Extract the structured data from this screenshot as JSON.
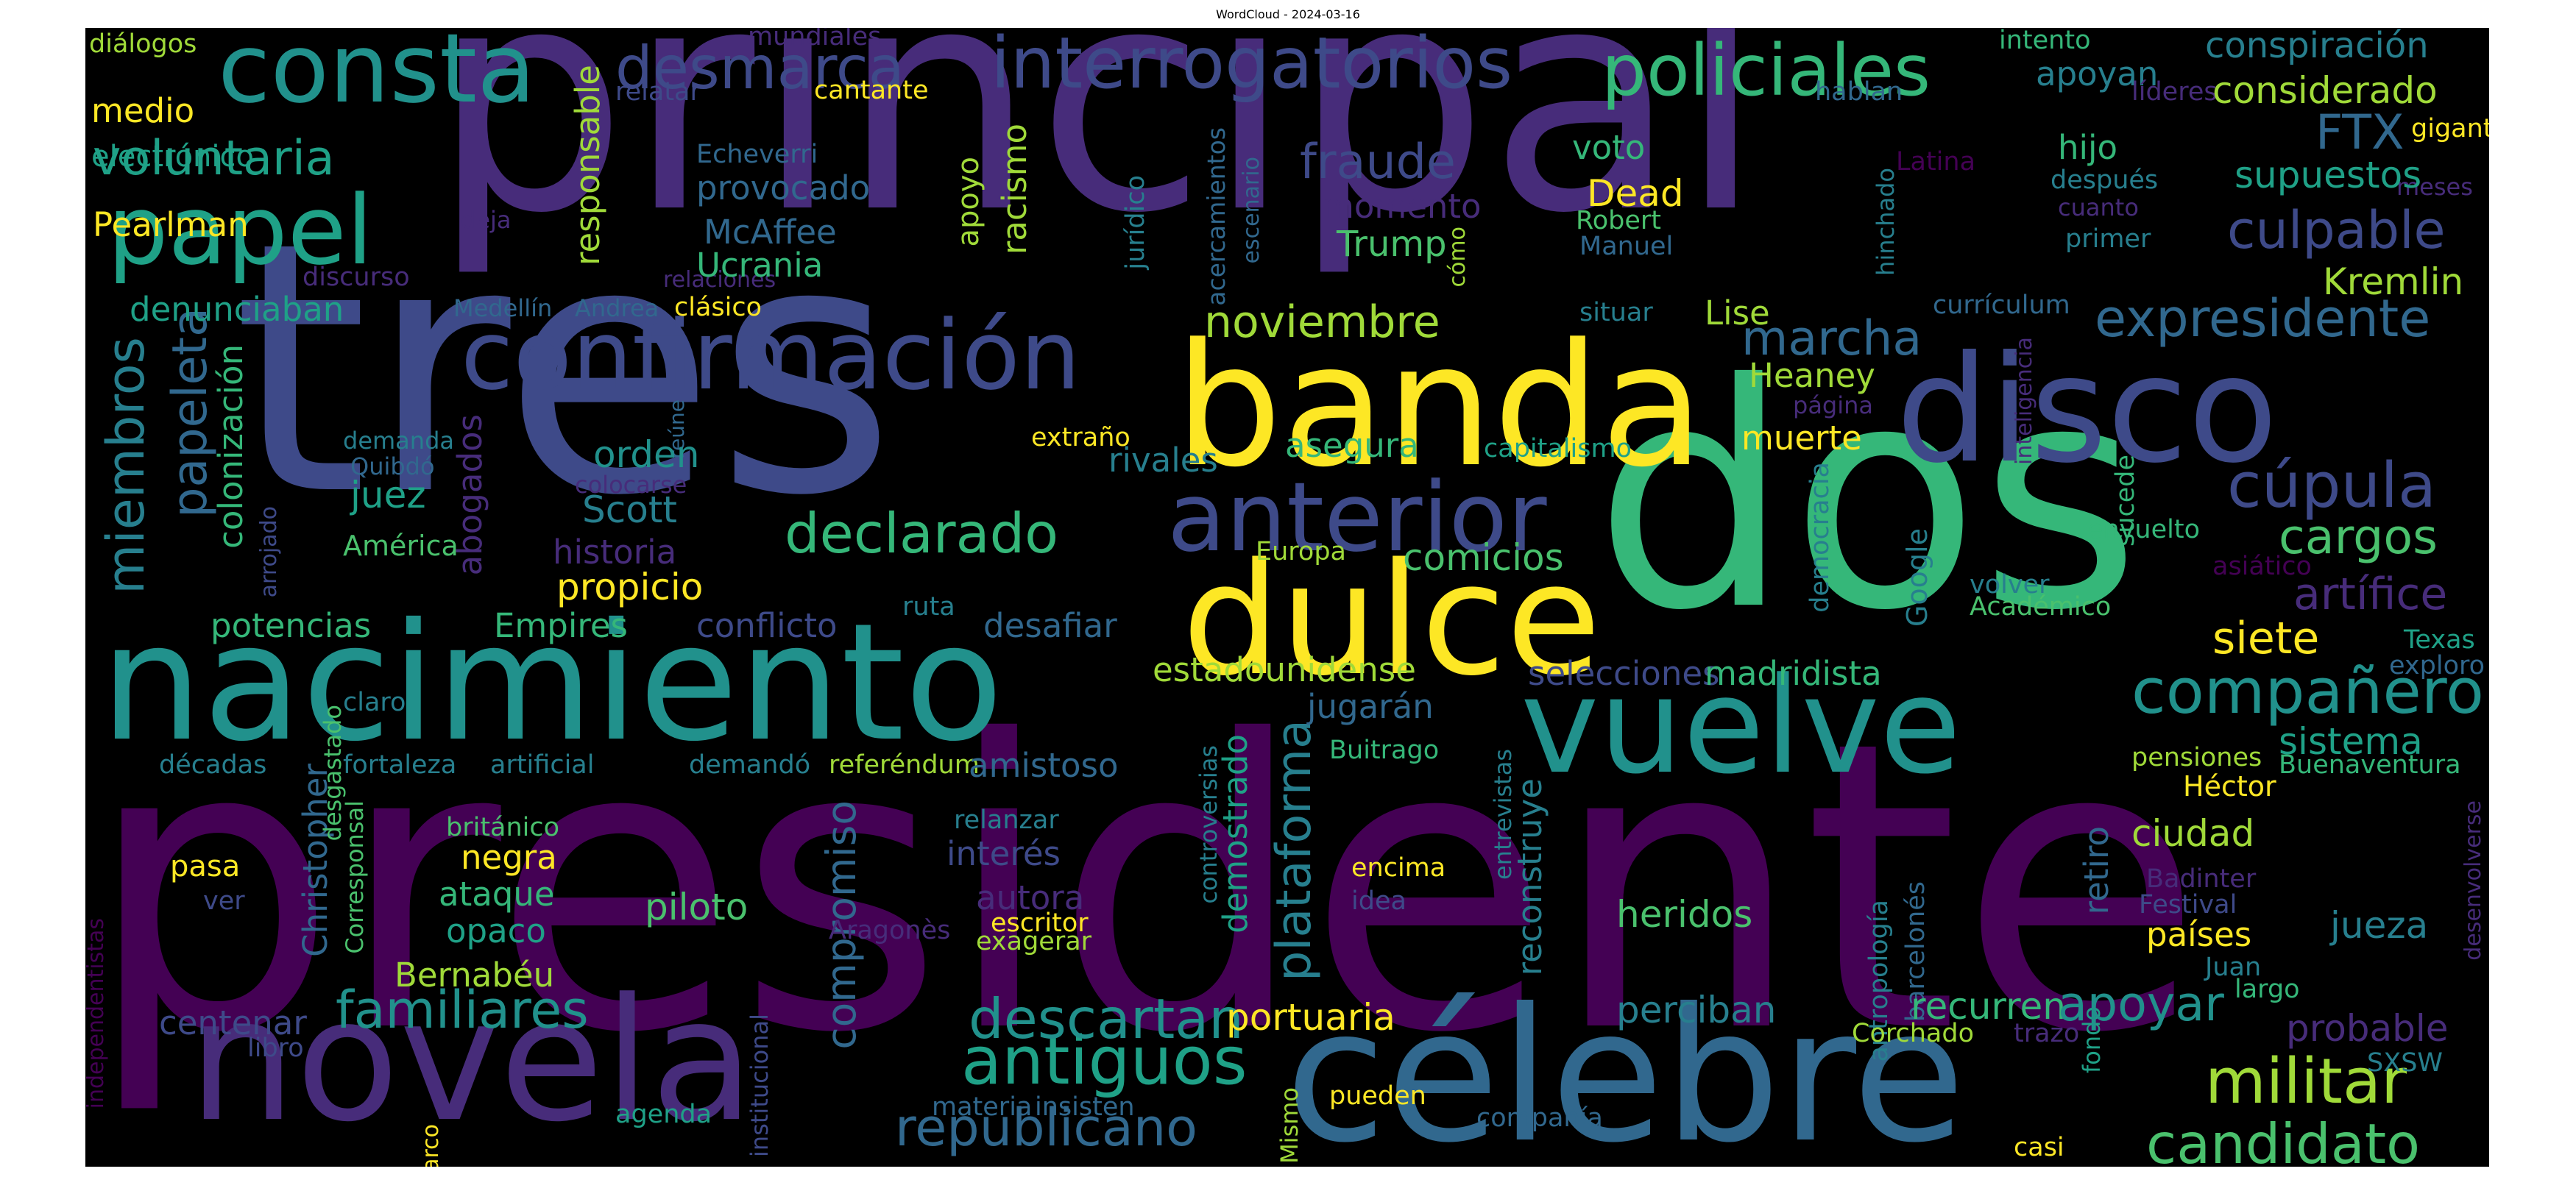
{
  "title": "WordCloud - 2024-03-16",
  "colors": {
    "background": "#000000",
    "yellow": "#fde725",
    "lightgreen": "#a0da39",
    "green": "#4ac16d",
    "seagreen": "#35b779",
    "teal": "#1fa187",
    "tealblue": "#21918c",
    "blue": "#277f8e",
    "steel": "#31688e",
    "indigo": "#3e4a89",
    "violet": "#472c7a",
    "purple": "#440154"
  },
  "words": [
    {
      "id": "presidente",
      "text": "presidente",
      "c": "#440154"
    },
    {
      "id": "principal",
      "text": "principal",
      "c": "#472c7a"
    },
    {
      "id": "tres",
      "text": "tres",
      "c": "#3e4a89"
    },
    {
      "id": "dos",
      "text": "dos",
      "c": "#35b779"
    },
    {
      "id": "banda",
      "text": "banda",
      "c": "#fde725"
    },
    {
      "id": "dulce",
      "text": "dulce",
      "c": "#fde725"
    },
    {
      "id": "nacimiento",
      "text": "nacimiento",
      "c": "#21918c"
    },
    {
      "id": "novela",
      "text": "novela",
      "c": "#472c7a"
    },
    {
      "id": "celebre",
      "text": "célebre",
      "c": "#31688e"
    },
    {
      "id": "vuelve",
      "text": "vuelve",
      "c": "#21918c"
    },
    {
      "id": "disco",
      "text": "disco",
      "c": "#3e4a89"
    },
    {
      "id": "confirmacion",
      "text": "confirmación",
      "c": "#3e4a89"
    },
    {
      "id": "anterior",
      "text": "anterior",
      "c": "#3e4a89"
    },
    {
      "id": "consta",
      "text": "consta",
      "c": "#21918c"
    },
    {
      "id": "papel",
      "text": "papel",
      "c": "#1fa187"
    },
    {
      "id": "interrogatorios",
      "text": "interrogatorios",
      "c": "#3e4a89"
    },
    {
      "id": "policiales",
      "text": "policiales",
      "c": "#35b779"
    },
    {
      "id": "desmarca",
      "text": "desmarca",
      "c": "#3e4a89"
    },
    {
      "id": "militar",
      "text": "militar",
      "c": "#a0da39"
    },
    {
      "id": "candidato",
      "text": "candidato",
      "c": "#4ac16d"
    },
    {
      "id": "antiguos",
      "text": "antiguos",
      "c": "#1fa187"
    },
    {
      "id": "republicano",
      "text": "republicano",
      "c": "#31688e"
    },
    {
      "id": "descartan",
      "text": "descartan",
      "c": "#21918c"
    },
    {
      "id": "companero",
      "text": "compañero",
      "c": "#21918c"
    },
    {
      "id": "cupula",
      "text": "cúpula",
      "c": "#3e4a89"
    },
    {
      "id": "expresidente",
      "text": "expresidente",
      "c": "#31688e"
    },
    {
      "id": "culpable",
      "text": "culpable",
      "c": "#3e4a89"
    },
    {
      "id": "voluntaria",
      "text": "voluntaria",
      "c": "#1fa187"
    },
    {
      "id": "declarado",
      "text": "declarado",
      "c": "#35b779"
    },
    {
      "id": "familiares",
      "text": "familiares",
      "c": "#21918c"
    },
    {
      "id": "noviembre",
      "text": "noviembre",
      "c": "#a0da39"
    },
    {
      "id": "fraude",
      "text": "fraude",
      "c": "#3e4a89"
    },
    {
      "id": "marcha",
      "text": "marcha",
      "c": "#31688e"
    },
    {
      "id": "cargos",
      "text": "cargos",
      "c": "#4ac16d"
    },
    {
      "id": "siete",
      "text": "siete",
      "c": "#fde725"
    },
    {
      "id": "artifice",
      "text": "artífice",
      "c": "#472c7a"
    },
    {
      "id": "miembros",
      "text": "miembros",
      "c": "#277f8e",
      "v": true
    },
    {
      "id": "papeleta",
      "text": "papeleta",
      "c": "#31688e",
      "v": true
    },
    {
      "id": "plataforma",
      "text": "plataforma",
      "c": "#277f8e",
      "v": true
    },
    {
      "id": "demostrado",
      "text": "demostrado",
      "c": "#1fa187",
      "v": true
    },
    {
      "id": "compromiso",
      "text": "compromiso",
      "c": "#31688e",
      "v": true
    },
    {
      "id": "reconstruye",
      "text": "reconstruye",
      "c": "#277f8e",
      "v": true
    },
    {
      "id": "colonizacion",
      "text": "colonización",
      "c": "#35b779",
      "v": true
    },
    {
      "id": "abogados",
      "text": "abogados",
      "c": "#472c7a",
      "v": true
    },
    {
      "id": "christopher",
      "text": "Christopher",
      "c": "#31688e",
      "v": true
    },
    {
      "id": "responsable",
      "text": "responsable",
      "c": "#a0da39",
      "v": true
    },
    {
      "id": "racismo",
      "text": "racismo",
      "c": "#a0da39",
      "v": true
    },
    {
      "id": "apoyo",
      "text": "apoyo",
      "c": "#a0da39",
      "v": true
    },
    {
      "id": "juridico",
      "text": "jurídico",
      "c": "#277f8e",
      "v": true
    },
    {
      "id": "acercamientos",
      "text": "acercamientos",
      "c": "#31688e",
      "v": true
    },
    {
      "id": "escenario",
      "text": "escenario",
      "c": "#31688e",
      "v": true
    },
    {
      "id": "hinchado",
      "text": "hinchado",
      "c": "#277f8e",
      "v": true
    },
    {
      "id": "como",
      "text": "cómo",
      "c": "#a0da39",
      "v": true
    },
    {
      "id": "reune",
      "text": "reúne",
      "c": "#31688e",
      "v": true
    },
    {
      "id": "arrojado",
      "text": "arrojado",
      "c": "#3e4a89",
      "v": true
    },
    {
      "id": "desgastado",
      "text": "desgastado",
      "c": "#4ac16d",
      "v": true
    },
    {
      "id": "corresponsal",
      "text": "Corresponsal",
      "c": "#4ac16d",
      "v": true
    },
    {
      "id": "independentistas",
      "text": "independentistas",
      "c": "#440154",
      "v": true
    },
    {
      "id": "marco",
      "text": "marco",
      "c": "#fde725",
      "v": true
    },
    {
      "id": "institucional",
      "text": "institucional",
      "c": "#3e4a89",
      "v": true
    },
    {
      "id": "controversias",
      "text": "controversias",
      "c": "#277f8e",
      "v": true
    },
    {
      "id": "mismo",
      "text": "Mismo",
      "c": "#a0da39",
      "v": true
    },
    {
      "id": "entrevistas",
      "text": "entrevistas",
      "c": "#277f8e",
      "v": true
    },
    {
      "id": "democracia",
      "text": "democracia",
      "c": "#277f8e",
      "v": true
    },
    {
      "id": "google",
      "text": "Google",
      "c": "#277f8e",
      "v": true
    },
    {
      "id": "inteligencia",
      "text": "inteligencia",
      "c": "#472c7a",
      "v": true
    },
    {
      "id": "sucede",
      "text": "sucede",
      "c": "#35b779",
      "v": true
    },
    {
      "id": "antropologia",
      "text": "antropología",
      "c": "#277f8e",
      "v": true
    },
    {
      "id": "barcelones",
      "text": "barcelonés",
      "c": "#31688e",
      "v": true
    },
    {
      "id": "fondo",
      "text": "fondo",
      "c": "#1fa187",
      "v": true
    },
    {
      "id": "retiro",
      "text": "retiro",
      "c": "#31688e",
      "v": true
    },
    {
      "id": "desenvolverse",
      "text": "desenvolverse",
      "c": "#472c7a",
      "v": true
    },
    {
      "id": "dialogos",
      "text": "diálogos",
      "c": "#a0da39"
    },
    {
      "id": "medio",
      "text": "medio",
      "c": "#fde725"
    },
    {
      "id": "electronico",
      "text": "electrónico",
      "c": "#1fa187"
    },
    {
      "id": "pearlman",
      "text": "Pearlman",
      "c": "#fde725"
    },
    {
      "id": "discurso",
      "text": "discurso",
      "c": "#472c7a"
    },
    {
      "id": "denunciaban",
      "text": "denunciaban",
      "c": "#1fa187"
    },
    {
      "id": "medellin",
      "text": "Medellín",
      "c": "#31688e"
    },
    {
      "id": "andrea",
      "text": "Andrea",
      "c": "#31688e"
    },
    {
      "id": "clasico",
      "text": "clásico",
      "c": "#fde725"
    },
    {
      "id": "relaciones",
      "text": "relaciones",
      "c": "#472c7a"
    },
    {
      "id": "deja",
      "text": "deja",
      "c": "#472c7a"
    },
    {
      "id": "mundiales",
      "text": "mundiales",
      "c": "#472c7a"
    },
    {
      "id": "relatar",
      "text": "relatar",
      "c": "#3e4a89"
    },
    {
      "id": "cantante",
      "text": "cantante",
      "c": "#fde725"
    },
    {
      "id": "echeverri",
      "text": "Echeverri",
      "c": "#31688e"
    },
    {
      "id": "provocado",
      "text": "provocado",
      "c": "#31688e"
    },
    {
      "id": "mcaffee",
      "text": "McAffee",
      "c": "#31688e"
    },
    {
      "id": "ucrania",
      "text": "Ucrania",
      "c": "#35b779"
    },
    {
      "id": "momento",
      "text": "momento",
      "c": "#472c7a"
    },
    {
      "id": "trump",
      "text": "Trump",
      "c": "#4ac16d"
    },
    {
      "id": "voto",
      "text": "voto",
      "c": "#35b779"
    },
    {
      "id": "dead",
      "text": "Dead",
      "c": "#fde725"
    },
    {
      "id": "robert",
      "text": "Robert",
      "c": "#4ac16d"
    },
    {
      "id": "manuel",
      "text": "Manuel",
      "c": "#31688e"
    },
    {
      "id": "intento",
      "text": "intento",
      "c": "#35b779"
    },
    {
      "id": "hablan",
      "text": "hablan",
      "c": "#31688e"
    },
    {
      "id": "latina",
      "text": "Latina",
      "c": "#440154"
    },
    {
      "id": "apoyan",
      "text": "apoyan",
      "c": "#277f8e"
    },
    {
      "id": "hijo",
      "text": "hijo",
      "c": "#35b779"
    },
    {
      "id": "despues",
      "text": "después",
      "c": "#277f8e"
    },
    {
      "id": "cuanto",
      "text": "cuanto",
      "c": "#472c7a"
    },
    {
      "id": "primer",
      "text": "primer",
      "c": "#277f8e"
    },
    {
      "id": "lideres",
      "text": "líderes",
      "c": "#472c7a"
    },
    {
      "id": "conspiracion",
      "text": "conspiración",
      "c": "#277f8e"
    },
    {
      "id": "considerado",
      "text": "considerado",
      "c": "#a0da39"
    },
    {
      "id": "ftx",
      "text": "FTX",
      "c": "#31688e"
    },
    {
      "id": "gigante",
      "text": "gigante",
      "c": "#fde725"
    },
    {
      "id": "meses",
      "text": "meses",
      "c": "#472c7a"
    },
    {
      "id": "supuestos",
      "text": "supuestos",
      "c": "#1fa187"
    },
    {
      "id": "kremlin",
      "text": "Kremlin",
      "c": "#a0da39"
    },
    {
      "id": "curriculum",
      "text": "currículum",
      "c": "#31688e"
    },
    {
      "id": "lise",
      "text": "Lise",
      "c": "#a0da39"
    },
    {
      "id": "situar",
      "text": "situar",
      "c": "#277f8e"
    },
    {
      "id": "heaney",
      "text": "Heaney",
      "c": "#a0da39"
    },
    {
      "id": "pagina",
      "text": "página",
      "c": "#472c7a"
    },
    {
      "id": "muerte",
      "text": "muerte",
      "c": "#fde725"
    },
    {
      "id": "asegura",
      "text": "asegura",
      "c": "#35b779"
    },
    {
      "id": "capitalismo",
      "text": "capitalismo",
      "c": "#1fa187"
    },
    {
      "id": "extrano",
      "text": "extraño",
      "c": "#fde725"
    },
    {
      "id": "rivales",
      "text": "rivales",
      "c": "#277f8e"
    },
    {
      "id": "demanda",
      "text": "demanda",
      "c": "#277f8e"
    },
    {
      "id": "quibdo",
      "text": "Quibdó",
      "c": "#31688e"
    },
    {
      "id": "orden",
      "text": "orden",
      "c": "#21918c"
    },
    {
      "id": "juez",
      "text": "juez",
      "c": "#1fa187"
    },
    {
      "id": "colocarse",
      "text": "colocarse",
      "c": "#472c7a"
    },
    {
      "id": "scott",
      "text": "Scott",
      "c": "#277f8e"
    },
    {
      "id": "america",
      "text": "América",
      "c": "#4ac16d"
    },
    {
      "id": "historia",
      "text": "historia",
      "c": "#472c7a"
    },
    {
      "id": "propicio",
      "text": "propicio",
      "c": "#fde725"
    },
    {
      "id": "comicios",
      "text": "comicios",
      "c": "#4ac16d"
    },
    {
      "id": "europa",
      "text": "Europa",
      "c": "#a0da39"
    },
    {
      "id": "potencias",
      "text": "potencias",
      "c": "#35b779"
    },
    {
      "id": "empires",
      "text": "Empires",
      "c": "#35b779"
    },
    {
      "id": "conflicto",
      "text": "conflicto",
      "c": "#3e4a89"
    },
    {
      "id": "ruta",
      "text": "ruta",
      "c": "#277f8e"
    },
    {
      "id": "desafiar",
      "text": "desafiar",
      "c": "#31688e"
    },
    {
      "id": "estadounidense",
      "text": "estadounidense",
      "c": "#a0da39"
    },
    {
      "id": "selecciones",
      "text": "selecciones",
      "c": "#3e4a89"
    },
    {
      "id": "madridista",
      "text": "madridista",
      "c": "#35b779"
    },
    {
      "id": "jugaran",
      "text": "jugarán",
      "c": "#31688e"
    },
    {
      "id": "claro",
      "text": "claro",
      "c": "#277f8e"
    },
    {
      "id": "envuelto",
      "text": "envuelto",
      "c": "#35b779"
    },
    {
      "id": "asiatico",
      "text": "asiático",
      "c": "#440154"
    },
    {
      "id": "volver",
      "text": "volver",
      "c": "#277f8e"
    },
    {
      "id": "academico",
      "text": "Académico",
      "c": "#4ac16d"
    },
    {
      "id": "texas",
      "text": "Texas",
      "c": "#1fa187"
    },
    {
      "id": "exploro",
      "text": "exploro",
      "c": "#31688e"
    },
    {
      "id": "sistema",
      "text": "sistema",
      "c": "#1fa187"
    },
    {
      "id": "buenaventura",
      "text": "Buenaventura",
      "c": "#35b779"
    },
    {
      "id": "pensiones",
      "text": "pensiones",
      "c": "#a0da39"
    },
    {
      "id": "hector",
      "text": "Héctor",
      "c": "#fde725"
    },
    {
      "id": "decadas",
      "text": "décadas",
      "c": "#277f8e"
    },
    {
      "id": "fortaleza",
      "text": "fortaleza",
      "c": "#277f8e"
    },
    {
      "id": "artificial",
      "text": "artificial",
      "c": "#277f8e"
    },
    {
      "id": "demando",
      "text": "demandó",
      "c": "#277f8e"
    },
    {
      "id": "referendum",
      "text": "referéndum",
      "c": "#a0da39"
    },
    {
      "id": "amistoso",
      "text": "amistoso",
      "c": "#31688e"
    },
    {
      "id": "buitrago",
      "text": "Buitrago",
      "c": "#35b779"
    },
    {
      "id": "britanico",
      "text": "británico",
      "c": "#4ac16d"
    },
    {
      "id": "relanzar",
      "text": "relanzar",
      "c": "#277f8e"
    },
    {
      "id": "interes",
      "text": "interés",
      "c": "#3e4a89"
    },
    {
      "id": "pasa",
      "text": "pasa",
      "c": "#fde725"
    },
    {
      "id": "negra",
      "text": "negra",
      "c": "#fde725"
    },
    {
      "id": "ver",
      "text": "ver",
      "c": "#3e4a89"
    },
    {
      "id": "ataque",
      "text": "ataque",
      "c": "#35b779"
    },
    {
      "id": "opaco",
      "text": "opaco",
      "c": "#1fa187"
    },
    {
      "id": "piloto",
      "text": "piloto",
      "c": "#4ac16d"
    },
    {
      "id": "autora",
      "text": "autora",
      "c": "#472c7a"
    },
    {
      "id": "aragones",
      "text": "Aragonès",
      "c": "#472c7a"
    },
    {
      "id": "escritor",
      "text": "escritor",
      "c": "#fde725"
    },
    {
      "id": "exagerar",
      "text": "exagerar",
      "c": "#a0da39"
    },
    {
      "id": "encima",
      "text": "encima",
      "c": "#fde725"
    },
    {
      "id": "idea",
      "text": "idea",
      "c": "#3e4a89"
    },
    {
      "id": "heridos",
      "text": "heridos",
      "c": "#4ac16d"
    },
    {
      "id": "ciudad",
      "text": "ciudad",
      "c": "#a0da39"
    },
    {
      "id": "badinter",
      "text": "Badinter",
      "c": "#472c7a"
    },
    {
      "id": "festival",
      "text": "Festival",
      "c": "#3e4a89"
    },
    {
      "id": "paises",
      "text": "países",
      "c": "#fde725"
    },
    {
      "id": "jueza",
      "text": "jueza",
      "c": "#277f8e"
    },
    {
      "id": "juan",
      "text": "Juan",
      "c": "#277f8e"
    },
    {
      "id": "largo",
      "text": "largo",
      "c": "#35b779"
    },
    {
      "id": "bernabeu",
      "text": "Bernabéu",
      "c": "#a0da39"
    },
    {
      "id": "centenar",
      "text": "centenar",
      "c": "#3e4a89"
    },
    {
      "id": "libro",
      "text": "libro",
      "c": "#3e4a89"
    },
    {
      "id": "portuaria",
      "text": "portuaria",
      "c": "#fde725"
    },
    {
      "id": "perciban",
      "text": "perciban",
      "c": "#277f8e"
    },
    {
      "id": "recurren",
      "text": "recurren",
      "c": "#35b779"
    },
    {
      "id": "apoyar",
      "text": "apoyar",
      "c": "#21918c"
    },
    {
      "id": "corchado",
      "text": "Corchado",
      "c": "#a0da39"
    },
    {
      "id": "trazo",
      "text": "trazo",
      "c": "#472c7a"
    },
    {
      "id": "probable",
      "text": "probable",
      "c": "#472c7a"
    },
    {
      "id": "sxsw",
      "text": "SXSW",
      "c": "#277f8e"
    },
    {
      "id": "agenda",
      "text": "agenda",
      "c": "#1fa187"
    },
    {
      "id": "materia",
      "text": "materia",
      "c": "#31688e"
    },
    {
      "id": "insisten",
      "text": "insisten",
      "c": "#31688e"
    },
    {
      "id": "pueden",
      "text": "pueden",
      "c": "#fde725"
    },
    {
      "id": "compania",
      "text": "compañía",
      "c": "#31688e"
    },
    {
      "id": "casi",
      "text": "casi",
      "c": "#fde725"
    }
  ]
}
